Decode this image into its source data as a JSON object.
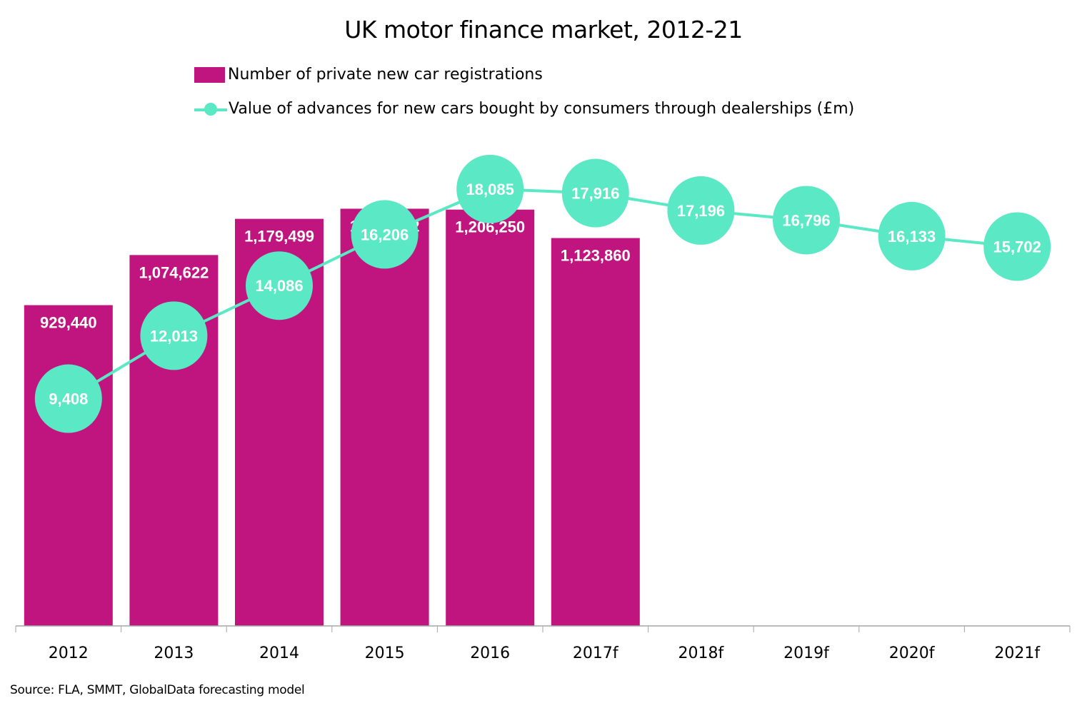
{
  "chart_data": {
    "type": "bar",
    "title": "UK motor finance market, 2012-21",
    "categories": [
      "2012",
      "2013",
      "2014",
      "2015",
      "2016",
      "2017f",
      "2018f",
      "2019f",
      "2020f",
      "2021f"
    ],
    "series": [
      {
        "name": "Number of private new car registrations",
        "type": "bar",
        "color": "#C0157F",
        "values": [
          929440,
          1074622,
          1179499,
          1208812,
          1206250,
          1123860,
          null,
          null,
          null,
          null
        ],
        "labels": [
          "929,440",
          "1,074,622",
          "1,179,499",
          "1,208,812",
          "1,206,250",
          "1,123,860",
          null,
          null,
          null,
          null
        ],
        "axis": "primary",
        "ylim": [
          0,
          1400000
        ]
      },
      {
        "name": "Value of advances for new cars bought by consumers through dealerships (£m)",
        "type": "line",
        "color": "#5AE8C5",
        "values": [
          9408,
          12013,
          14086,
          16206,
          18085,
          17916,
          17196,
          16796,
          16133,
          15702
        ],
        "labels": [
          "9,408",
          "12,013",
          "14,086",
          "16,206",
          "18,085",
          "17,916",
          "17,196",
          "16,796",
          "16,133",
          "15,702"
        ],
        "axis": "secondary",
        "ylim": [
          0,
          20000
        ]
      }
    ],
    "xlabel": "",
    "ylabel": "",
    "grid": false,
    "axes_visible": false,
    "legend_position": "top",
    "source": "Source: FLA, SMMT, GlobalData forecasting model"
  },
  "legend": {
    "bar_label": "Number of private new car registrations",
    "line_label": "Value of advances for new cars bought by consumers through dealerships (£m)"
  }
}
